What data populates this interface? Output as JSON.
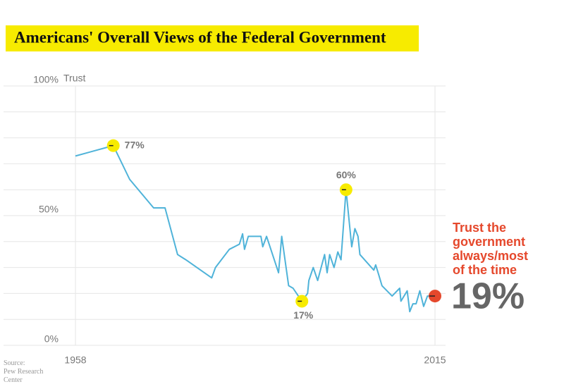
{
  "chart_data": {
    "type": "line",
    "title": "Americans' Overall Views of the Federal Government",
    "y_label": "Trust",
    "source": "Source: Pew Research Center",
    "x": [
      1958,
      1964,
      1966.6,
      1970.4,
      1972.2,
      1974.2,
      1975.5,
      1979.6,
      1980.2,
      1982.4,
      1984,
      1984.5,
      1984.8,
      1985.4,
      1987.4,
      1987.7,
      1988.3,
      1990.2,
      1990.7,
      1991.8,
      1992.5,
      1993.9,
      1994.8,
      1995,
      1995.7,
      1996.4,
      1997.5,
      1997.9,
      1998.3,
      1999,
      1999.6,
      2000.1,
      2000.9,
      2001.8,
      2002.3,
      2002.8,
      2003.1,
      2005.3,
      2005.6,
      2006.1,
      2006.6,
      2008.2,
      2009.4,
      2009.6,
      2010.6,
      2011,
      2011.5,
      2012,
      2012.6,
      2013.2,
      2013.8,
      2014.1,
      2015
    ],
    "series": [
      {
        "name": "Trust the government always/most of the time",
        "color": "#4fb3d9",
        "values": [
          73,
          77,
          64,
          53,
          53,
          35,
          33,
          26,
          30,
          37,
          39,
          43,
          37,
          42,
          42,
          38,
          42,
          28,
          42,
          23,
          22,
          17,
          20,
          25,
          30,
          25,
          35,
          28,
          35,
          30,
          36,
          33,
          60,
          38,
          45,
          42,
          35,
          29,
          31,
          27,
          23,
          19,
          22,
          17,
          21,
          13,
          16,
          16,
          21,
          15,
          19,
          19,
          19
        ]
      }
    ],
    "xlim": [
      1958,
      2015
    ],
    "xticks": [
      1958,
      2015
    ],
    "ylim": [
      0,
      100
    ],
    "yticks": [
      {
        "value": 0,
        "label": "0%"
      },
      {
        "value": 50,
        "label": "50%"
      },
      {
        "value": 100,
        "label": "100%"
      }
    ],
    "ygrid": [
      0,
      10,
      20,
      30,
      40,
      50,
      60,
      70,
      80,
      90,
      100
    ],
    "annotations": [
      {
        "x": 1964,
        "value": 77,
        "label": "77%"
      },
      {
        "x": 2000.9,
        "value": 60,
        "label": "60%"
      },
      {
        "x": 1993.9,
        "value": 17,
        "label": "17%"
      }
    ],
    "highlight_color": "#f7eb00",
    "end_label": {
      "x": 2015,
      "value": 19,
      "label": "19%",
      "text": "Trust the government always/most of the time",
      "color": "#e5482c"
    }
  }
}
